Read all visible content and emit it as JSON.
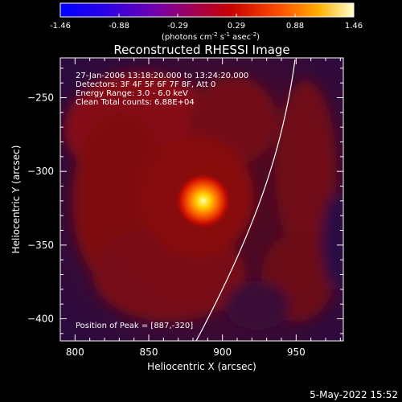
{
  "colorbar": {
    "ticks": [
      "-1.46",
      "-0.88",
      "-0.29",
      "0.29",
      "0.88",
      "1.46"
    ],
    "units_prefix": "(photons cm",
    "units_sup1": "-2",
    "units_mid": " s",
    "units_sup2": "-1",
    "units_mid2": " asec",
    "units_sup3": "-2",
    "units_suffix": ")"
  },
  "image_info": {
    "time_range": "27-Jan-2006 13:18:20.000 to 13:24:20.000",
    "detectors": "Detectors: 3F 4F 5F 6F 7F 8F, Att 0",
    "energy": "Energy Range: 3.0 - 6.0 keV",
    "clean": "Clean     Total counts: 6.88E+04",
    "peak": "Position of Peak = [887,-320]"
  },
  "timestamp": "5-May-2022 15:52",
  "colors": {
    "background": "#000000",
    "axes": "#ffffff",
    "limb": "#ffffff"
  },
  "chart_data": {
    "type": "heatmap",
    "title": "Reconstructed RHESSI Image",
    "xlabel": "Heliocentric X (arcsec)",
    "ylabel": "Heliocentric Y (arcsec)",
    "xlim": [
      790,
      982
    ],
    "ylim": [
      -415,
      -223
    ],
    "xticks": [
      800,
      850,
      900,
      950
    ],
    "yticks": [
      -250,
      -300,
      -350,
      -400
    ],
    "colorbar_range": [
      -1.46,
      1.46
    ],
    "peak": {
      "x": 887,
      "y": -320
    }
  }
}
